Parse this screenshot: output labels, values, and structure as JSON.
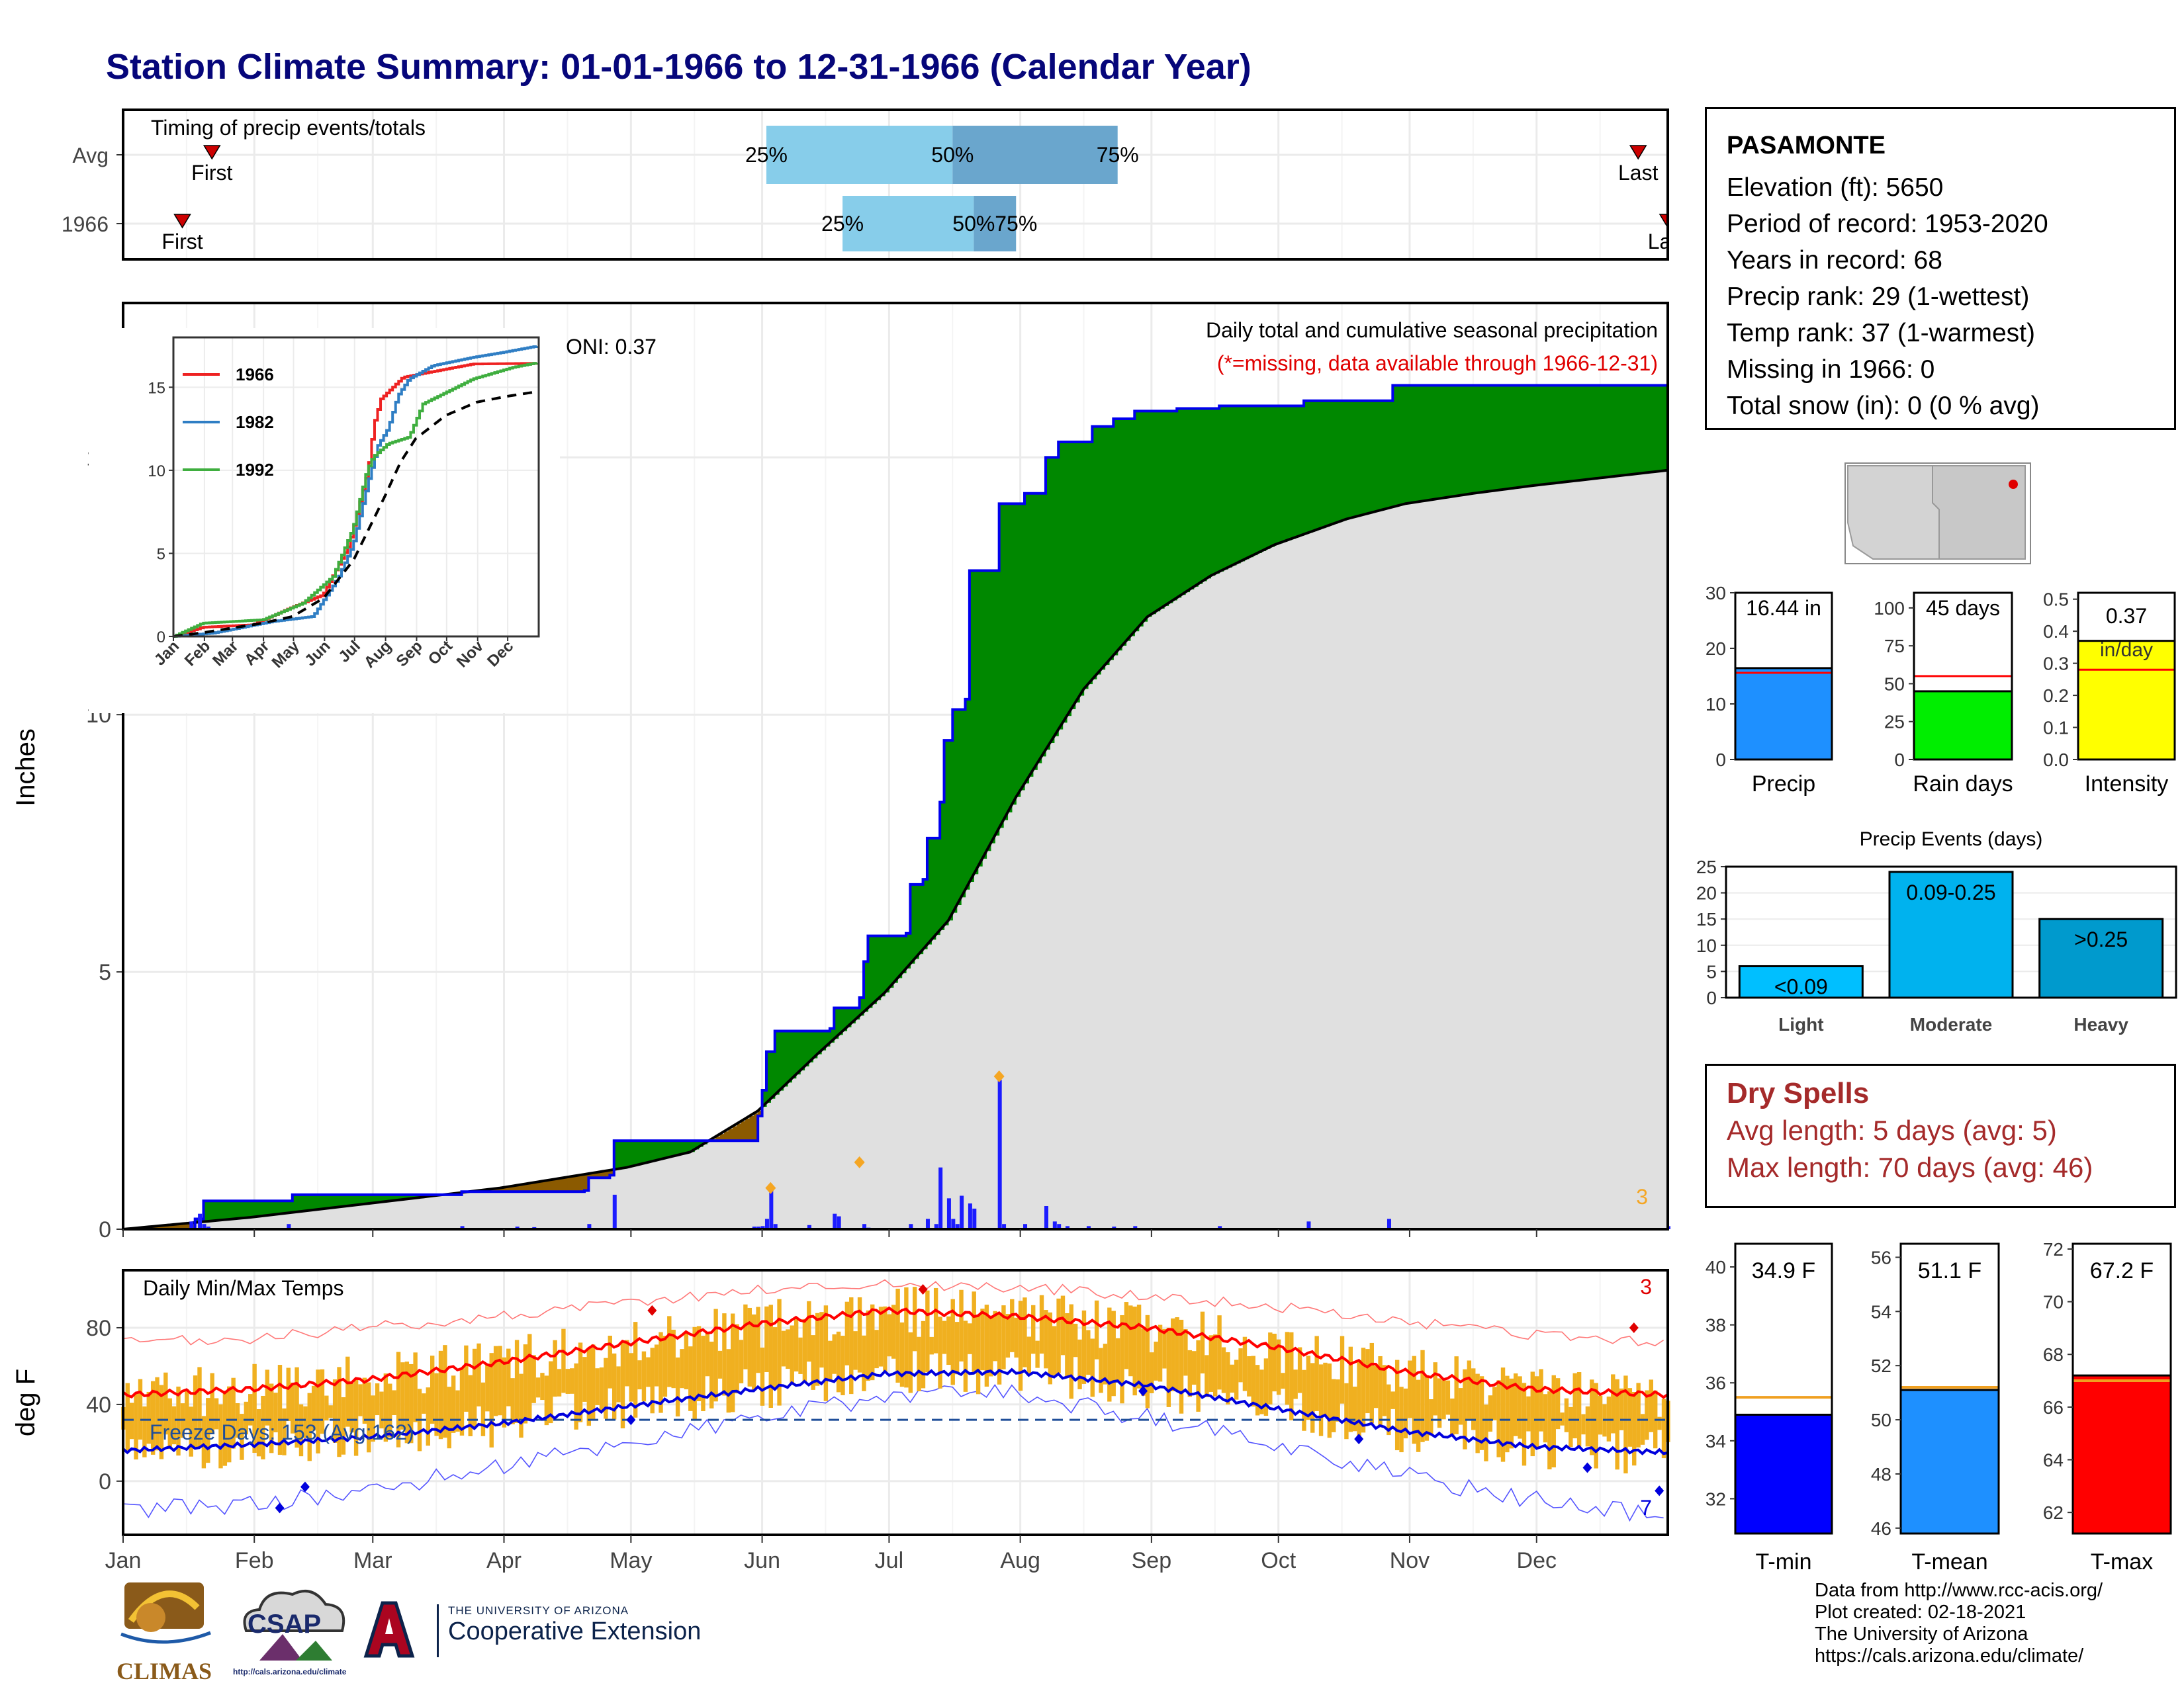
{
  "title": "Station Climate Summary: 01-01-1966 to 12-31-1966 (Calendar Year)",
  "station": {
    "name": "PASAMONTE",
    "lines": [
      "Elevation (ft): 5650",
      "Period of record: 1953-2020",
      "Years in record: 68",
      "Precip rank: 29 (1-wettest)",
      "Temp rank: 37 (1-warmest)",
      "Missing in 1966: 0",
      "Total snow (in): 0 (0 % avg)"
    ]
  },
  "dry_spells": {
    "heading": "Dry Spells",
    "avg_line": "Avg length: 5 days (avg: 5)",
    "max_line": "Max length: 70 days (avg: 46)"
  },
  "credits": [
    "Data from http://www.rcc-acis.org/",
    "Plot created: 02-18-2021",
    "The University of Arizona",
    "https://cals.arizona.edu/climate/"
  ],
  "logos": {
    "climas": "CLIMAS",
    "csap": "CSAP",
    "csap_url": "http://cals.arizona.edu/climate",
    "ua_small": "THE UNIVERSITY OF ARIZONA",
    "ua_big": "Cooperative Extension"
  },
  "colors": {
    "title": "#06067a",
    "above_avg": "#008800",
    "below_avg": "#8b5a00",
    "avg_fill": "#e0e0e0",
    "cum_line": "#0000ee",
    "event_bar": "#1c1cff",
    "quartile_light": "#87cdea",
    "quartile_dark": "#6aa6cd",
    "temp_bar": "#f0b020",
    "tmax_line": "#ff0000",
    "tmin_line": "#0000dd",
    "dry_spell_text": "#a52a2a"
  },
  "chart_data": [
    {
      "id": "timing",
      "type": "bar",
      "title": "Timing of precip events/totals",
      "categories": [
        "Avg",
        "1966"
      ],
      "x_units": "day of year",
      "rows": [
        {
          "label": "Avg",
          "first_day": 22,
          "last_day": 359,
          "q25": 153,
          "q50": 197,
          "q75": 236,
          "first_label": "First",
          "last_label": "Last",
          "q25_label": "25%",
          "q50_label": "50%",
          "q75_label": "75%"
        },
        {
          "label": "1966",
          "first_day": 15,
          "last_day": 366,
          "q25": 171,
          "q50": 202,
          "q75": 212,
          "first_label": "First",
          "last_label": "Last",
          "q25_label": "25%",
          "q50_label": "50%",
          "q75_label": "75%"
        }
      ]
    },
    {
      "id": "precip",
      "type": "area",
      "title": "Daily total and cumulative seasonal precipitation",
      "subtitle": "(*=missing, data available through 1966-12-31)",
      "ylabel": "Inches",
      "ylim": [
        0,
        18
      ],
      "yticks": [
        0,
        5,
        10,
        15
      ],
      "oni": "ONI: 0.37",
      "corner_count": "3",
      "months": [
        "Jan",
        "Feb",
        "Mar",
        "Apr",
        "May",
        "Jun",
        "Jul",
        "Aug",
        "Sep",
        "Oct",
        "Nov",
        "Dec"
      ],
      "avg_cumulative": [
        [
          1,
          0.0
        ],
        [
          31,
          0.23
        ],
        [
          59,
          0.5
        ],
        [
          90,
          0.8
        ],
        [
          120,
          1.2
        ],
        [
          135,
          1.5
        ],
        [
          151,
          2.3
        ],
        [
          165,
          3.4
        ],
        [
          181,
          4.6
        ],
        [
          196,
          6.0
        ],
        [
          212,
          8.4
        ],
        [
          228,
          10.5
        ],
        [
          243,
          11.9
        ],
        [
          258,
          12.7
        ],
        [
          273,
          13.3
        ],
        [
          290,
          13.8
        ],
        [
          304,
          14.1
        ],
        [
          320,
          14.3
        ],
        [
          334,
          14.45
        ],
        [
          350,
          14.6
        ],
        [
          366,
          14.75
        ]
      ],
      "cumulative_1966": [
        [
          1,
          0.0
        ],
        [
          18,
          0.2
        ],
        [
          20,
          0.55
        ],
        [
          40,
          0.55
        ],
        [
          41,
          0.67
        ],
        [
          80,
          0.67
        ],
        [
          81,
          0.73
        ],
        [
          110,
          0.75
        ],
        [
          111,
          1.0
        ],
        [
          116,
          1.05
        ],
        [
          117,
          1.72
        ],
        [
          150,
          1.72
        ],
        [
          151,
          2.2
        ],
        [
          152,
          2.7
        ],
        [
          153,
          3.45
        ],
        [
          155,
          3.85
        ],
        [
          168,
          3.9
        ],
        [
          169,
          4.3
        ],
        [
          175,
          4.5
        ],
        [
          176,
          5.2
        ],
        [
          177,
          5.7
        ],
        [
          186,
          5.75
        ],
        [
          187,
          6.7
        ],
        [
          190,
          6.8
        ],
        [
          191,
          7.6
        ],
        [
          194,
          8.3
        ],
        [
          195,
          9.5
        ],
        [
          197,
          10.1
        ],
        [
          200,
          10.3
        ],
        [
          201,
          12.8
        ],
        [
          207,
          12.8
        ],
        [
          208,
          14.1
        ],
        [
          214,
          14.3
        ],
        [
          219,
          15.0
        ],
        [
          222,
          15.3
        ],
        [
          230,
          15.6
        ],
        [
          235,
          15.75
        ],
        [
          240,
          15.9
        ],
        [
          250,
          15.95
        ],
        [
          260,
          16.0
        ],
        [
          280,
          16.1
        ],
        [
          300,
          16.1
        ],
        [
          301,
          16.4
        ],
        [
          366,
          16.44
        ]
      ],
      "daily_events_1966": [
        [
          17,
          0.15
        ],
        [
          19,
          0.3
        ],
        [
          20,
          0.1
        ],
        [
          21,
          0.05
        ],
        [
          40,
          0.1
        ],
        [
          81,
          0.06
        ],
        [
          94,
          0.05
        ],
        [
          98,
          0.04
        ],
        [
          111,
          0.1
        ],
        [
          117,
          0.67
        ],
        [
          150,
          0.05
        ],
        [
          151,
          0.05
        ],
        [
          152,
          0.06
        ],
        [
          153,
          0.2
        ],
        [
          154,
          0.75
        ],
        [
          155,
          0.1
        ],
        [
          163,
          0.08
        ],
        [
          169,
          0.3
        ],
        [
          170,
          0.25
        ],
        [
          176,
          0.1
        ],
        [
          177,
          0.03
        ],
        [
          187,
          0.1
        ],
        [
          191,
          0.2
        ],
        [
          193,
          0.1
        ],
        [
          194,
          1.2
        ],
        [
          196,
          0.6
        ],
        [
          197,
          0.2
        ],
        [
          198,
          0.1
        ],
        [
          199,
          0.65
        ],
        [
          201,
          0.5
        ],
        [
          202,
          0.4
        ],
        [
          208,
          2.9
        ],
        [
          209,
          0.1
        ],
        [
          214,
          0.1
        ],
        [
          219,
          0.45
        ],
        [
          221,
          0.15
        ],
        [
          222,
          0.1
        ],
        [
          224,
          0.06
        ],
        [
          229,
          0.06
        ],
        [
          235,
          0.05
        ],
        [
          240,
          0.06
        ],
        [
          260,
          0.06
        ],
        [
          281,
          0.15
        ],
        [
          300,
          0.2
        ],
        [
          366,
          0.06
        ]
      ],
      "markers": [
        [
          154,
          0.8
        ],
        [
          175,
          1.3
        ],
        [
          208,
          2.97
        ]
      ]
    },
    {
      "id": "inset_cumulative",
      "type": "line",
      "xticks": [
        "Jan",
        "Feb",
        "Mar",
        "Apr",
        "May",
        "Jun",
        "Jul",
        "Aug",
        "Sep",
        "Oct",
        "Nov",
        "Dec"
      ],
      "yticks": [
        0,
        5,
        10,
        15
      ],
      "ylim": [
        0,
        18
      ],
      "series": [
        {
          "name": "1966",
          "color": "#ee2222",
          "points": [
            [
              1,
              0
            ],
            [
              30,
              0.55
            ],
            [
              80,
              0.7
            ],
            [
              117,
              1.7
            ],
            [
              150,
              2.5
            ],
            [
              176,
              5.5
            ],
            [
              195,
              10.0
            ],
            [
              201,
              12.8
            ],
            [
              208,
              14.3
            ],
            [
              230,
              15.6
            ],
            [
              300,
              16.4
            ],
            [
              366,
              16.44
            ]
          ]
        },
        {
          "name": "1982",
          "color": "#2f7ec4",
          "points": [
            [
              1,
              0
            ],
            [
              40,
              0.2
            ],
            [
              100,
              0.9
            ],
            [
              140,
              1.2
            ],
            [
              165,
              3.5
            ],
            [
              180,
              5.5
            ],
            [
              196,
              9.5
            ],
            [
              205,
              11.5
            ],
            [
              215,
              12.5
            ],
            [
              225,
              14.5
            ],
            [
              236,
              15.5
            ],
            [
              260,
              16.3
            ],
            [
              300,
              16.8
            ],
            [
              330,
              17.1
            ],
            [
              366,
              17.5
            ]
          ]
        },
        {
          "name": "1992",
          "color": "#3fae3f",
          "points": [
            [
              1,
              0
            ],
            [
              30,
              0.8
            ],
            [
              90,
              1.0
            ],
            [
              130,
              2.0
            ],
            [
              160,
              3.6
            ],
            [
              180,
              6.5
            ],
            [
              194,
              10.0
            ],
            [
              200,
              10.8
            ],
            [
              215,
              11.6
            ],
            [
              236,
              12.0
            ],
            [
              250,
              14.0
            ],
            [
              300,
              15.5
            ],
            [
              340,
              16.2
            ],
            [
              366,
              16.5
            ]
          ]
        },
        {
          "name": "Avg",
          "color": "#000000",
          "dashed": true,
          "points": [
            [
              1,
              0.0
            ],
            [
              31,
              0.23
            ],
            [
              59,
              0.5
            ],
            [
              90,
              0.8
            ],
            [
              120,
              1.2
            ],
            [
              151,
              2.3
            ],
            [
              181,
              4.6
            ],
            [
              212,
              8.4
            ],
            [
              228,
              10.5
            ],
            [
              243,
              11.9
            ],
            [
              273,
              13.3
            ],
            [
              304,
              14.1
            ],
            [
              334,
              14.45
            ],
            [
              366,
              14.75
            ]
          ]
        }
      ]
    },
    {
      "id": "temps",
      "type": "bar",
      "title": "Daily Min/Max Temps",
      "ylabel": "deg F",
      "ylim": [
        -28,
        110
      ],
      "yticks": [
        0,
        40,
        80
      ],
      "freeze_label": "Freeze Days: 153 (Avg:162)",
      "freeze_line": 32,
      "corner_top": "3",
      "corner_bottom": "7",
      "months": [
        "Jan",
        "Feb",
        "Mar",
        "Apr",
        "May",
        "Jun",
        "Jul",
        "Aug",
        "Sep",
        "Oct",
        "Nov",
        "Dec"
      ],
      "avg_tmax_pts": [
        [
          1,
          45
        ],
        [
          31,
          48
        ],
        [
          59,
          53
        ],
        [
          90,
          62
        ],
        [
          120,
          72
        ],
        [
          151,
          82
        ],
        [
          181,
          89
        ],
        [
          212,
          86
        ],
        [
          243,
          80
        ],
        [
          273,
          70
        ],
        [
          304,
          57
        ],
        [
          334,
          48
        ],
        [
          366,
          45
        ]
      ],
      "avg_tmin_pts": [
        [
          1,
          16
        ],
        [
          31,
          19
        ],
        [
          59,
          23
        ],
        [
          90,
          30
        ],
        [
          120,
          39
        ],
        [
          151,
          48
        ],
        [
          181,
          56
        ],
        [
          212,
          57
        ],
        [
          243,
          50
        ],
        [
          273,
          38
        ],
        [
          304,
          26
        ],
        [
          334,
          18
        ],
        [
          366,
          15
        ]
      ],
      "record_high_pts": [
        [
          1,
          72
        ],
        [
          31,
          74
        ],
        [
          59,
          80
        ],
        [
          90,
          86
        ],
        [
          120,
          93
        ],
        [
          151,
          100
        ],
        [
          181,
          103
        ],
        [
          212,
          101
        ],
        [
          243,
          97
        ],
        [
          273,
          91
        ],
        [
          304,
          83
        ],
        [
          334,
          76
        ],
        [
          366,
          72
        ]
      ],
      "record_low_pts": [
        [
          1,
          -15
        ],
        [
          31,
          -12
        ],
        [
          59,
          -5
        ],
        [
          90,
          8
        ],
        [
          120,
          20
        ],
        [
          151,
          33
        ],
        [
          181,
          44
        ],
        [
          212,
          46
        ],
        [
          243,
          33
        ],
        [
          273,
          20
        ],
        [
          304,
          3
        ],
        [
          334,
          -10
        ],
        [
          366,
          -18
        ]
      ]
    },
    {
      "id": "precip_bars",
      "type": "bar",
      "categories": [
        "Precip",
        "Rain days",
        "Intensity"
      ],
      "values": [
        16.44,
        45,
        0.37
      ],
      "averages": [
        15.6,
        55,
        0.28
      ],
      "labels": [
        "16.44 in",
        "45 days",
        "0.37 in/day"
      ],
      "ylims": [
        [
          0,
          30
        ],
        [
          0,
          110
        ],
        [
          0,
          0.52
        ]
      ],
      "yticks": [
        [
          0,
          10,
          20,
          30
        ],
        [
          0,
          25,
          50,
          75,
          100
        ],
        [
          0.0,
          0.1,
          0.2,
          0.3,
          0.4,
          0.5
        ]
      ],
      "colors": [
        "#1e90ff",
        "#00ee00",
        "#ffff00"
      ]
    },
    {
      "id": "precip_events",
      "type": "bar",
      "title": "Precip Events (days)",
      "categories": [
        "Light",
        "Moderate",
        "Heavy"
      ],
      "values": [
        6,
        24,
        15
      ],
      "bar_labels": [
        "<0.09",
        "0.09-0.25",
        ">0.25"
      ],
      "ylim": [
        0,
        25
      ],
      "yticks": [
        0,
        5,
        10,
        15,
        20,
        25
      ],
      "colors": [
        "#00bfff",
        "#00b2ee",
        "#009acd"
      ]
    },
    {
      "id": "temp_bars",
      "type": "bar",
      "categories": [
        "T-min",
        "T-mean",
        "T-max"
      ],
      "values": [
        34.9,
        51.1,
        67.2
      ],
      "averages": [
        35.5,
        51.2,
        67.0
      ],
      "labels": [
        "34.9 F",
        "51.1 F",
        "67.2 F"
      ],
      "ylims": [
        [
          30.8,
          40.8
        ],
        [
          45.8,
          56.5
        ],
        [
          61.2,
          72.2
        ]
      ],
      "yticks": [
        [
          32,
          34,
          36,
          38,
          40
        ],
        [
          46,
          48,
          50,
          52,
          54,
          56
        ],
        [
          62,
          64,
          66,
          68,
          70,
          72
        ]
      ],
      "colors": [
        "#0000ff",
        "#1e90ff",
        "#ff0000"
      ]
    }
  ]
}
